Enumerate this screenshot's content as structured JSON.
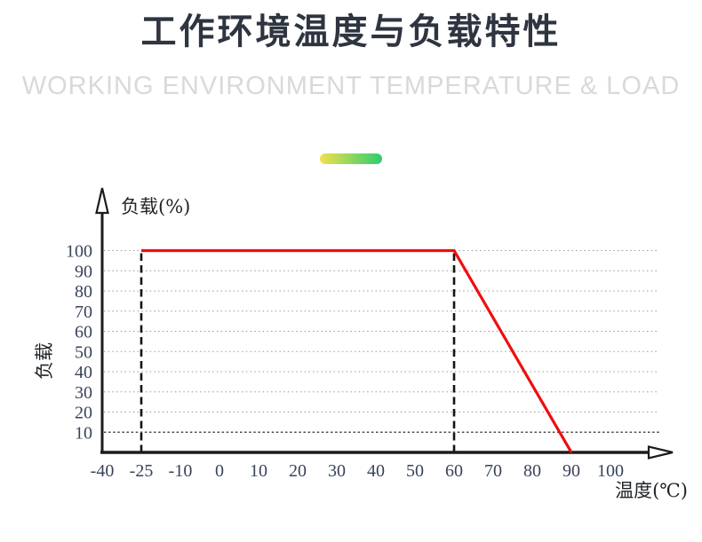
{
  "header": {
    "title_cn": "工作环境温度与负载特性",
    "title_en": "WORKING ENVIRONMENT TEMPERATURE & LOAD"
  },
  "accent": {
    "gradient_start": "#f2e14c",
    "gradient_end": "#2ecc70"
  },
  "chart_data": {
    "type": "line",
    "title": "工作环境温度与负载特性",
    "subtitle": "WORKING ENVIRONMENT TEMPERATURE & LOAD",
    "x_axis_label": "温度(℃)",
    "y_axis_label": "负载(%)",
    "y_axis_side_label": "负载",
    "x_ticks": [
      "-40",
      "-25",
      "-10",
      "0",
      "10",
      "20",
      "30",
      "40",
      "50",
      "60",
      "70",
      "80",
      "90",
      "100"
    ],
    "y_ticks": [
      10,
      20,
      30,
      40,
      50,
      60,
      70,
      80,
      90,
      100
    ],
    "ylim": [
      0,
      100
    ],
    "grid": "dotted-horizontal",
    "legend": "none",
    "line_color": "#f20d0d",
    "series": [
      {
        "name": "load-curve",
        "color": "#f20d0d",
        "points": [
          {
            "x": -25,
            "y": 100
          },
          {
            "x": 60,
            "y": 100
          },
          {
            "x": 90,
            "y": 0
          }
        ]
      }
    ],
    "reference_lines": [
      {
        "type": "vertical-dashed",
        "x": -25,
        "from_y": 0,
        "to_y": 100
      },
      {
        "type": "vertical-dashed",
        "x": 60,
        "from_y": 0,
        "to_y": 100
      }
    ]
  }
}
